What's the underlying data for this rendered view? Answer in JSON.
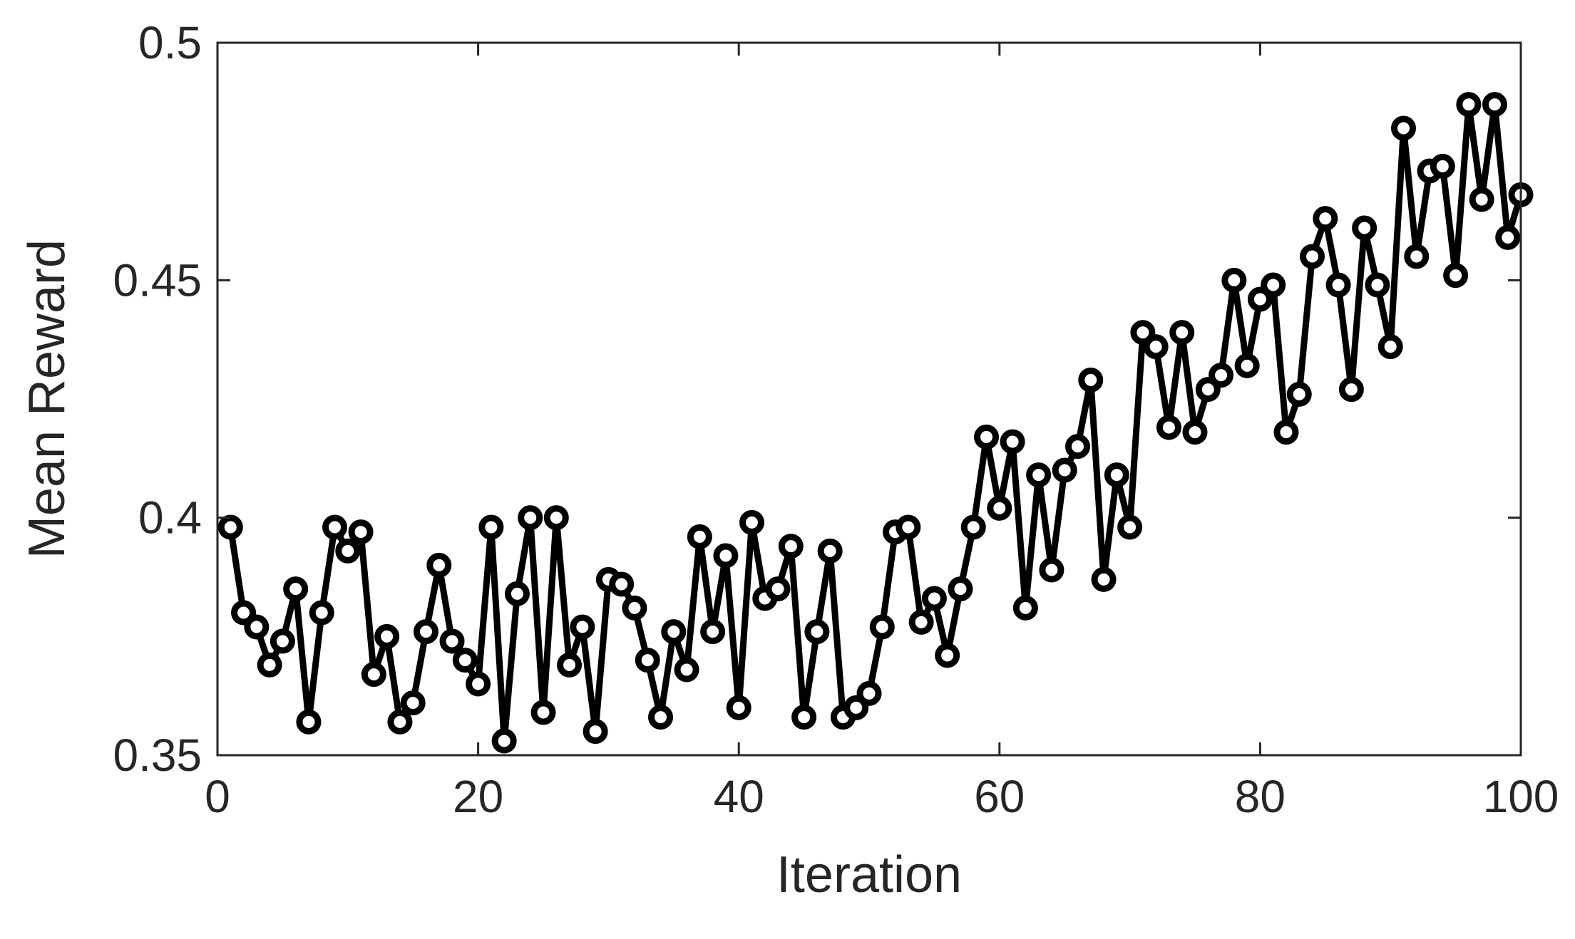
{
  "chart_data": {
    "type": "line",
    "title": "",
    "xlabel": "Iteration",
    "ylabel": "Mean Reward",
    "xlim": [
      0,
      100
    ],
    "ylim": [
      0.35,
      0.5
    ],
    "xticks": [
      0,
      20,
      40,
      60,
      80,
      100
    ],
    "xtick_labels": [
      "0",
      "20",
      "40",
      "60",
      "80",
      "100"
    ],
    "yticks": [
      0.35,
      0.4,
      0.45,
      0.5
    ],
    "ytick_labels": [
      "0.35",
      "0.4",
      "0.45",
      "0.5"
    ],
    "grid": false,
    "legend": "none",
    "line_color": "#000000",
    "marker": "open-circle",
    "series": [
      {
        "x": [
          1,
          2,
          3,
          4,
          5,
          6,
          7,
          8,
          9,
          10,
          11,
          12,
          13,
          14,
          15,
          16,
          17,
          18,
          19,
          20,
          21,
          22,
          23,
          24,
          25,
          26,
          27,
          28,
          29,
          30,
          31,
          32,
          33,
          34,
          35,
          36,
          37,
          38,
          39,
          40,
          41,
          42,
          43,
          44,
          45,
          46,
          47,
          48,
          49,
          50,
          51,
          52,
          53,
          54,
          55,
          56,
          57,
          58,
          59,
          60,
          61,
          62,
          63,
          64,
          65,
          66,
          67,
          68,
          69,
          70,
          71,
          72,
          73,
          74,
          75,
          76,
          77,
          78,
          79,
          80,
          81,
          82,
          83,
          84,
          85,
          86,
          87,
          88,
          89,
          90,
          91,
          92,
          93,
          94,
          95,
          96,
          97,
          98,
          99,
          100
        ],
        "values": [
          0.398,
          0.38,
          0.377,
          0.369,
          0.374,
          0.385,
          0.357,
          0.38,
          0.398,
          0.393,
          0.397,
          0.367,
          0.375,
          0.357,
          0.361,
          0.376,
          0.39,
          0.374,
          0.37,
          0.365,
          0.398,
          0.353,
          0.384,
          0.4,
          0.359,
          0.4,
          0.369,
          0.377,
          0.355,
          0.387,
          0.386,
          0.381,
          0.37,
          0.358,
          0.376,
          0.368,
          0.396,
          0.376,
          0.392,
          0.36,
          0.399,
          0.383,
          0.385,
          0.394,
          0.358,
          0.376,
          0.393,
          0.358,
          0.36,
          0.363,
          0.377,
          0.397,
          0.398,
          0.378,
          0.383,
          0.371,
          0.385,
          0.398,
          0.417,
          0.402,
          0.416,
          0.381,
          0.409,
          0.389,
          0.41,
          0.415,
          0.429,
          0.387,
          0.409,
          0.398,
          0.439,
          0.436,
          0.419,
          0.439,
          0.418,
          0.427,
          0.43,
          0.45,
          0.432,
          0.446,
          0.449,
          0.418,
          0.426,
          0.455,
          0.463,
          0.449,
          0.427,
          0.461,
          0.449,
          0.436,
          0.482,
          0.455,
          0.473,
          0.474,
          0.451,
          0.487,
          0.467,
          0.487,
          0.459,
          0.468
        ]
      }
    ]
  }
}
